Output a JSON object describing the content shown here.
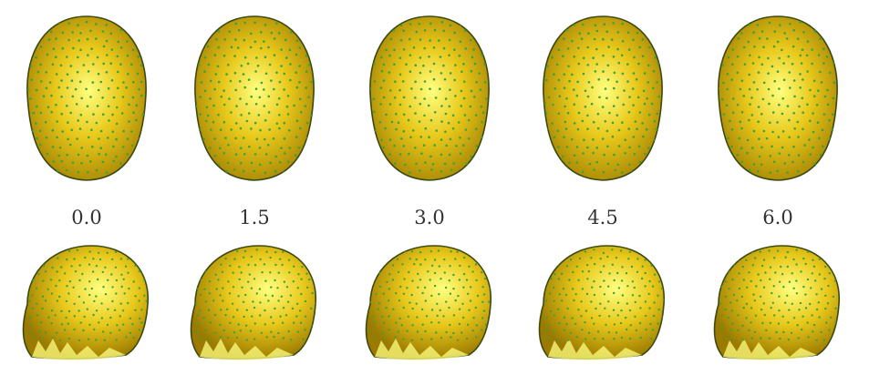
{
  "figure": {
    "panels": [
      {
        "label": "0.0"
      },
      {
        "label": "1.5"
      },
      {
        "label": "3.0"
      },
      {
        "label": "4.5"
      },
      {
        "label": "6.0"
      }
    ],
    "colors": {
      "surface_highlight": "#ffff80",
      "surface_mid": "#e8c81a",
      "surface_shadow": "#9a7a00",
      "outline": "#3a4a10",
      "markers": "#3da23a"
    },
    "view_top": "front view of head surface mesh with green sensor markers",
    "view_bottom": "side view of head surface mesh with green sensor markers"
  }
}
